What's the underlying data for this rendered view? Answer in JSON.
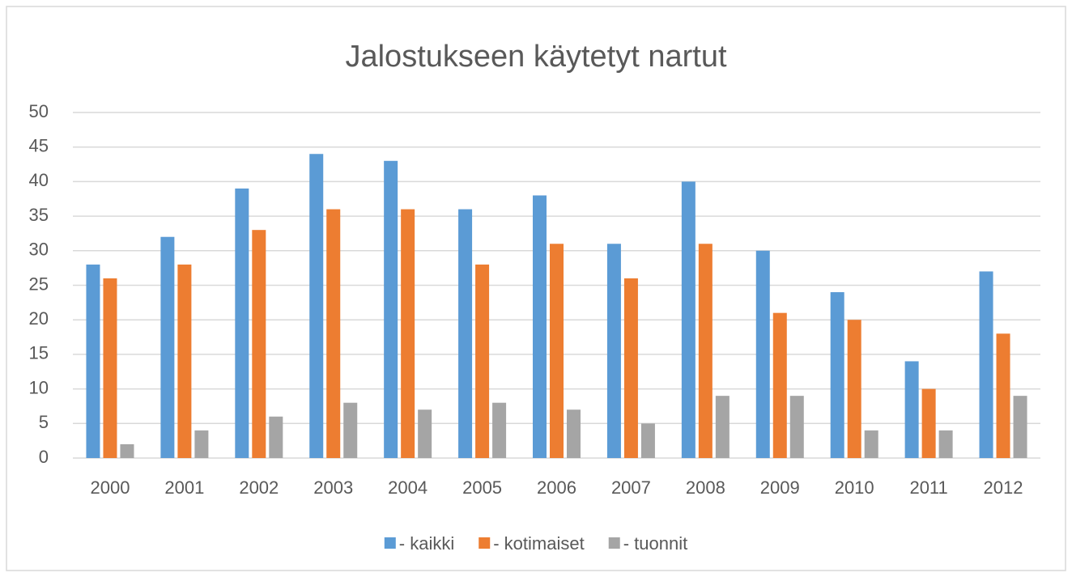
{
  "chart_data": {
    "type": "bar",
    "title": "Jalostukseen käytetyt nartut",
    "categories": [
      "2000",
      "2001",
      "2002",
      "2003",
      "2004",
      "2005",
      "2006",
      "2007",
      "2008",
      "2009",
      "2010",
      "2011",
      "2012"
    ],
    "series": [
      {
        "name": "- kaikki",
        "color": "#5b9bd5",
        "values": [
          28,
          32,
          39,
          44,
          43,
          36,
          38,
          31,
          40,
          30,
          24,
          14,
          27
        ]
      },
      {
        "name": "- kotimaiset",
        "color": "#ed7d31",
        "values": [
          26,
          28,
          33,
          36,
          36,
          28,
          31,
          26,
          31,
          21,
          20,
          10,
          18
        ]
      },
      {
        "name": "- tuonnit",
        "color": "#a5a5a5",
        "values": [
          2,
          4,
          6,
          8,
          7,
          8,
          7,
          5,
          9,
          9,
          4,
          4,
          9
        ]
      }
    ],
    "ylim": [
      0,
      50
    ],
    "yticks": [
      0,
      5,
      10,
      15,
      20,
      25,
      30,
      35,
      40,
      45,
      50
    ],
    "grid": true,
    "legend": "bottom"
  }
}
